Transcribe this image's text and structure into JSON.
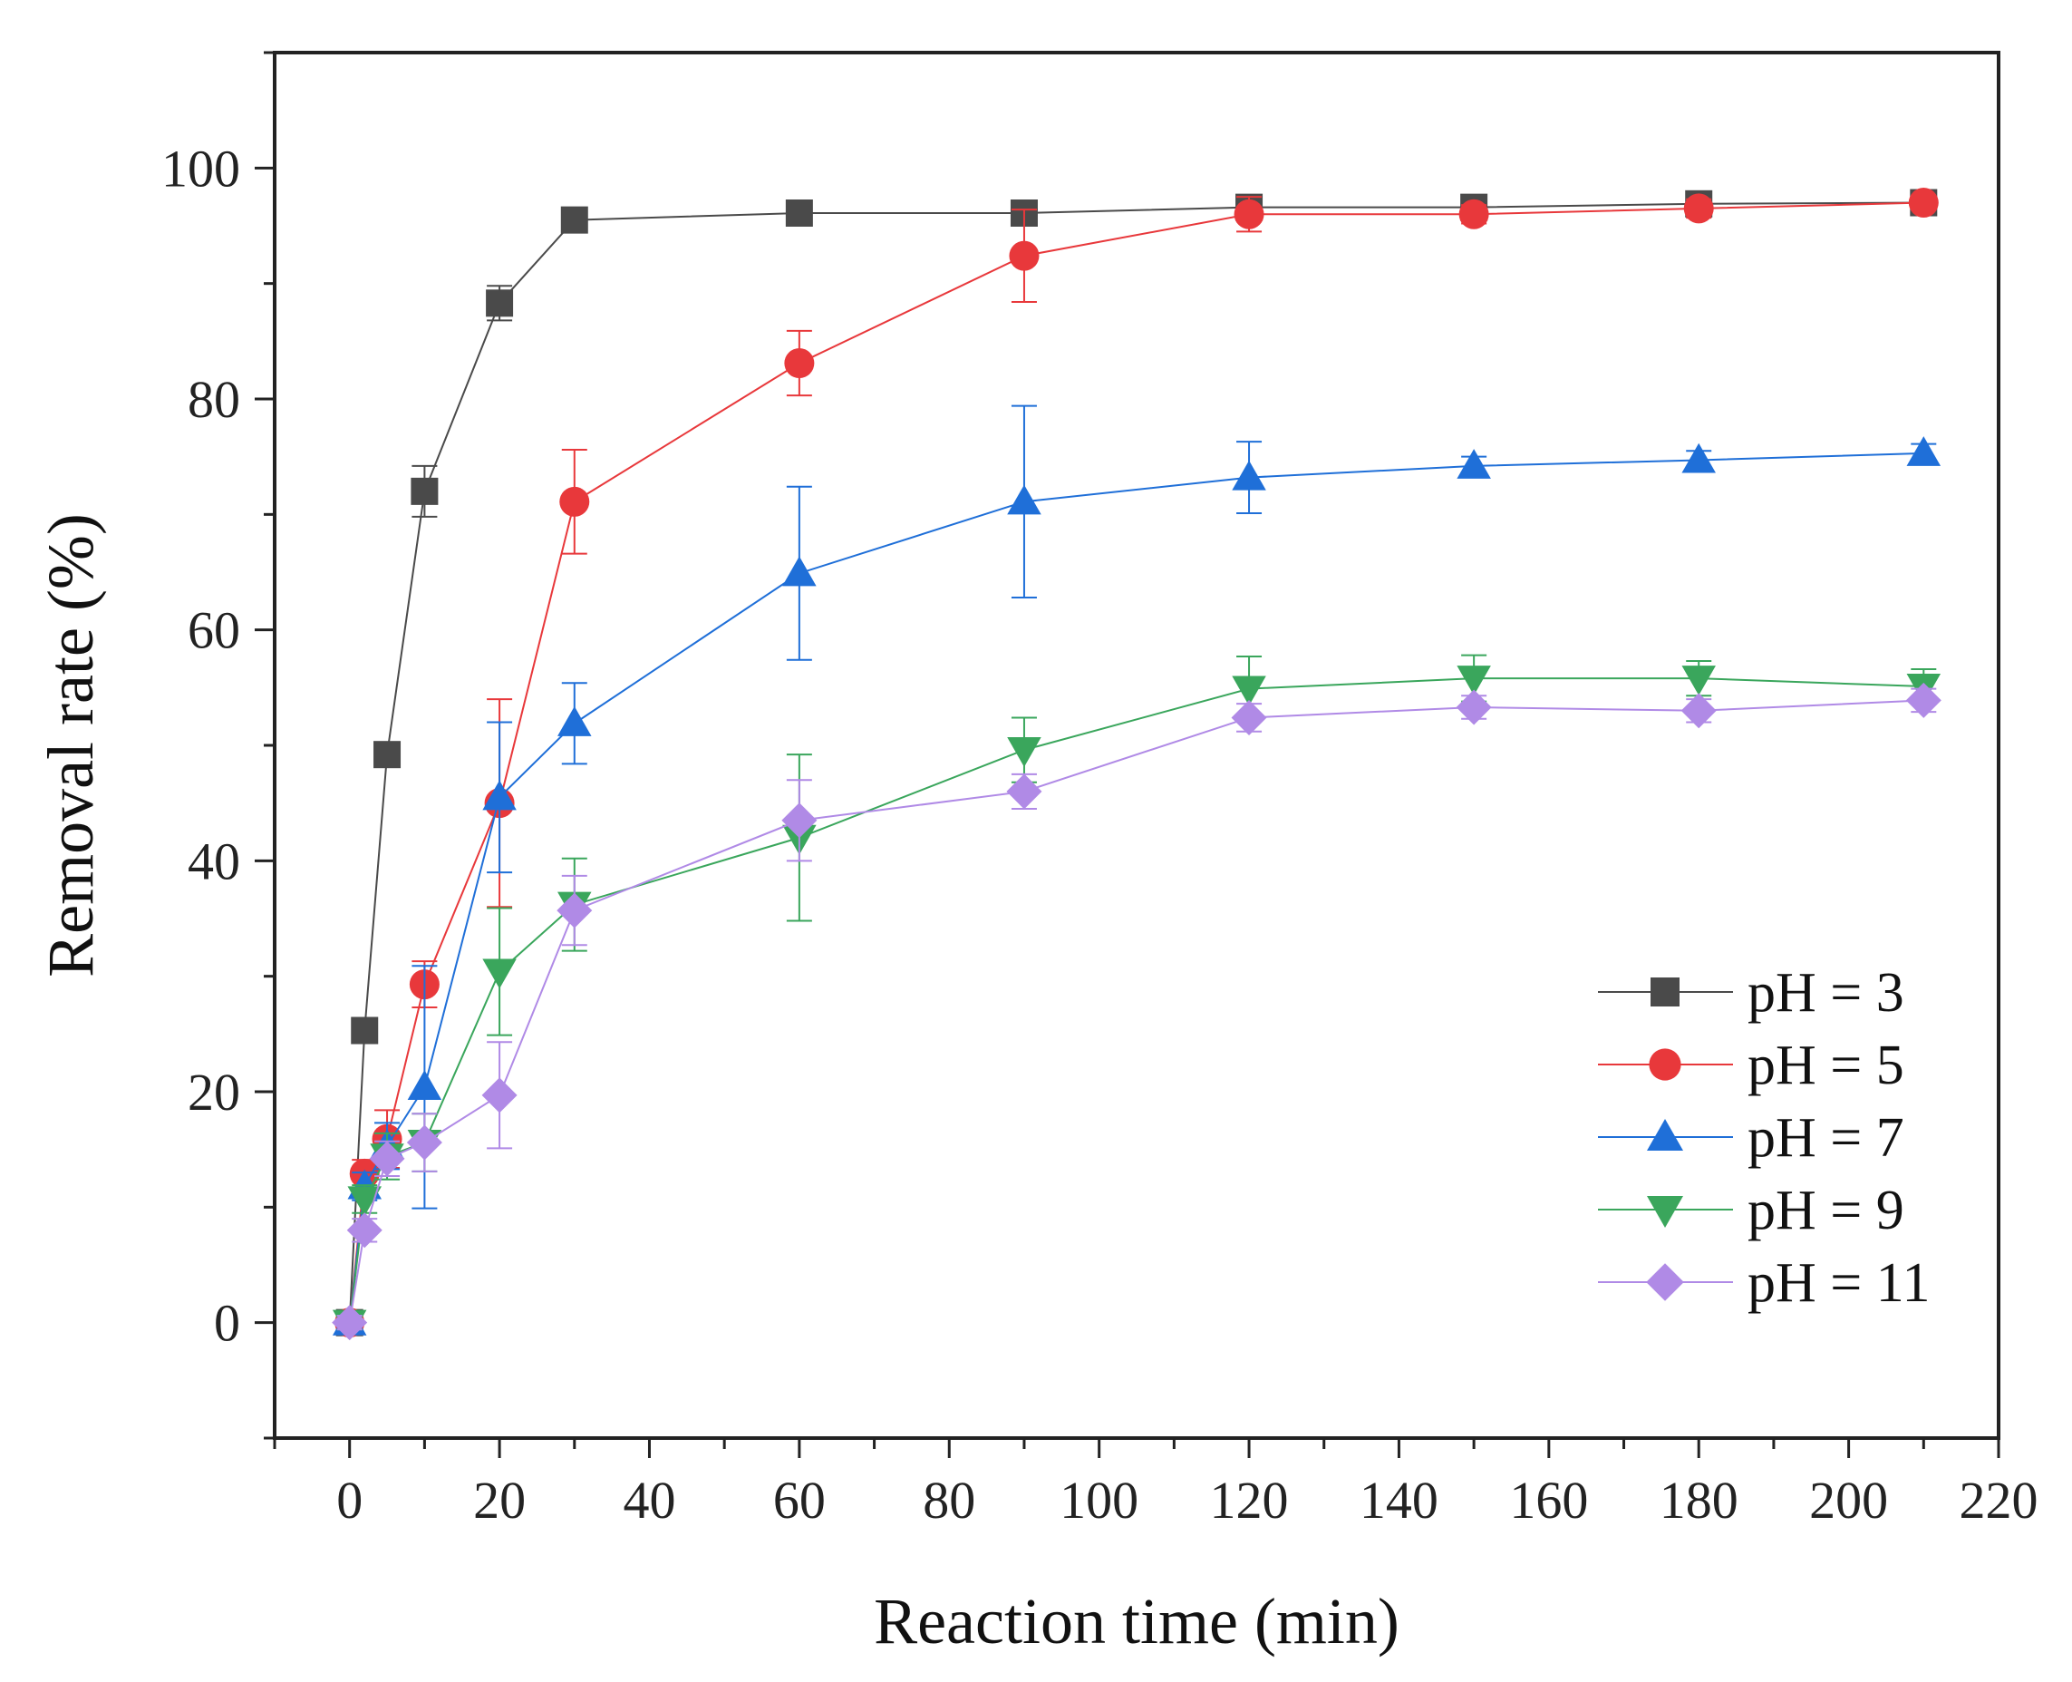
{
  "chart_data": {
    "type": "line",
    "title": "",
    "xlabel": "Reaction time (min)",
    "ylabel": "Removal rate (%)",
    "xlim": [
      -10,
      220
    ],
    "ylim": [
      -10,
      110
    ],
    "xticks": [
      0,
      20,
      40,
      60,
      80,
      100,
      120,
      140,
      160,
      180,
      200,
      220
    ],
    "yticks": [
      0,
      20,
      40,
      60,
      80,
      100
    ],
    "xtick_labels": [
      "0",
      "20",
      "40",
      "60",
      "80",
      "100",
      "120",
      "140",
      "160",
      "180",
      "200",
      "220"
    ],
    "ytick_labels": [
      "0",
      "20",
      "40",
      "60",
      "80",
      "100"
    ],
    "legend_position": "bottom-right",
    "grid": false,
    "series": [
      {
        "name": "pH = 3",
        "color": "#4a4a4a",
        "marker": "square",
        "x": [
          0,
          2,
          5,
          10,
          20,
          30,
          60,
          90,
          120,
          150,
          180,
          210
        ],
        "y": [
          0,
          25.3,
          49.2,
          72.0,
          88.3,
          95.5,
          96.1,
          96.1,
          96.6,
          96.6,
          96.9,
          97.0
        ],
        "err": [
          0.6,
          0.8,
          1.0,
          2.2,
          1.5,
          0.6,
          0.5,
          0.5,
          0.5,
          0.5,
          0.5,
          0.5
        ]
      },
      {
        "name": "pH = 5",
        "color": "#e8383b",
        "marker": "circle",
        "x": [
          0,
          2,
          5,
          10,
          20,
          30,
          60,
          90,
          120,
          150,
          180,
          210
        ],
        "y": [
          0,
          12.9,
          15.9,
          29.3,
          45.0,
          71.1,
          83.1,
          92.4,
          96.0,
          96.0,
          96.5,
          97.0
        ],
        "err": [
          0.6,
          1.2,
          2.5,
          2.0,
          9.0,
          4.5,
          2.8,
          4.0,
          1.5,
          0.8,
          0.8,
          0.5
        ]
      },
      {
        "name": "pH = 7",
        "color": "#1f6fd8",
        "marker": "triangle-up",
        "x": [
          0,
          2,
          5,
          10,
          20,
          30,
          60,
          90,
          120,
          150,
          180,
          210
        ],
        "y": [
          0,
          11.8,
          15.3,
          20.4,
          45.5,
          51.9,
          64.9,
          71.1,
          73.2,
          74.2,
          74.7,
          75.3
        ],
        "err": [
          0.6,
          1.2,
          2.0,
          10.5,
          6.5,
          3.5,
          7.5,
          8.3,
          3.1,
          0.8,
          0.8,
          0.8
        ]
      },
      {
        "name": "pH = 9",
        "color": "#3aa65c",
        "marker": "triangle-down",
        "x": [
          0,
          2,
          5,
          10,
          20,
          30,
          60,
          90,
          120,
          150,
          180,
          210
        ],
        "y": [
          0,
          10.7,
          14.4,
          15.6,
          30.4,
          36.2,
          42.0,
          49.6,
          54.9,
          55.8,
          55.8,
          55.1
        ],
        "err": [
          0.6,
          1.2,
          2.0,
          2.5,
          5.5,
          4.0,
          7.2,
          2.8,
          2.8,
          2.0,
          1.5,
          1.5
        ]
      },
      {
        "name": "pH = 11",
        "color": "#b08ae6",
        "marker": "diamond",
        "x": [
          0,
          2,
          5,
          10,
          20,
          30,
          60,
          90,
          120,
          150,
          180,
          210
        ],
        "y": [
          0,
          8.0,
          14.2,
          15.6,
          19.7,
          35.7,
          43.5,
          46.0,
          52.4,
          53.3,
          53.0,
          53.9
        ],
        "err": [
          0.6,
          1.0,
          1.5,
          2.5,
          4.6,
          3.0,
          3.5,
          1.5,
          1.2,
          1.0,
          1.0,
          1.0
        ]
      }
    ]
  }
}
